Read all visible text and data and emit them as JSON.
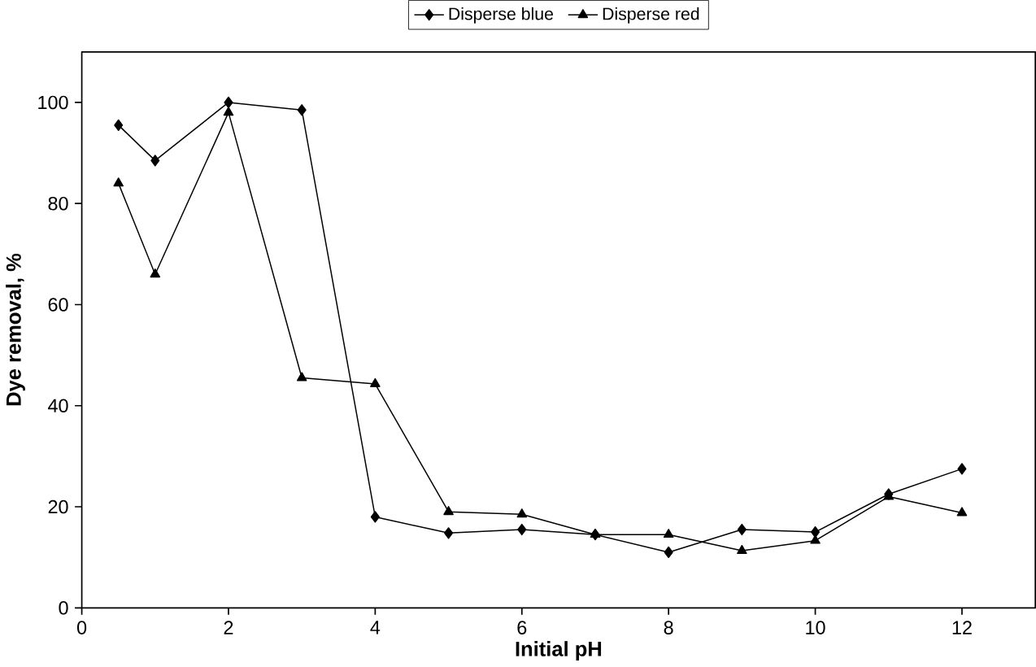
{
  "chart_data": {
    "type": "line",
    "xlabel": "Initial pH",
    "ylabel": "Dye removal, %",
    "x": [
      0.5,
      1,
      2,
      3,
      4,
      5,
      6,
      7,
      8,
      9,
      10,
      11,
      12
    ],
    "series": [
      {
        "name": "Disperse blue",
        "color": "#000000",
        "marker": "diamond",
        "values": [
          95.5,
          88.5,
          100,
          98.5,
          18,
          14.8,
          15.5,
          14.5,
          11,
          15.5,
          15,
          22.5,
          27.5
        ]
      },
      {
        "name": "Disperse red",
        "color": "#000000",
        "marker": "triangle",
        "values": [
          84,
          66,
          98,
          45.5,
          44.3,
          19,
          18.5,
          14.5,
          14.5,
          11.3,
          13.3,
          22,
          18.8
        ]
      }
    ],
    "xlim": [
      0,
      13
    ],
    "xticks": [
      0,
      2,
      4,
      6,
      8,
      10,
      12
    ],
    "ylim": [
      0,
      110
    ],
    "yticks": [
      0,
      20,
      40,
      60,
      80,
      100
    ],
    "grid": false,
    "legend": "top",
    "line_style": "solid"
  }
}
